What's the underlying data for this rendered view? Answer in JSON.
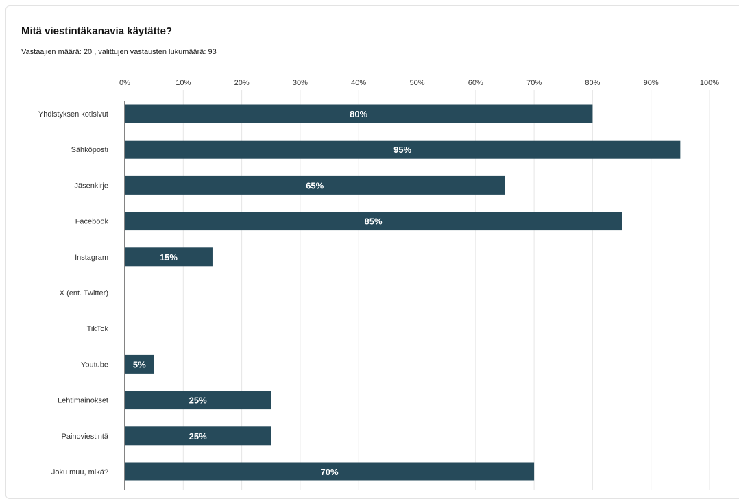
{
  "chart_data": {
    "type": "bar",
    "orientation": "horizontal",
    "title": "Mitä viestintäkanavia käytätte?",
    "subtitle": "Vastaajien määrä: 20 , valittujen vastausten lukumäärä: 93",
    "categories": [
      "Yhdistyksen kotisivut",
      "Sähköposti",
      "Jäsenkirje",
      "Facebook",
      "Instagram",
      "X (ent. Twitter)",
      "TikTok",
      "Youtube",
      "Lehtimainokset",
      "Painoviestintä",
      "Joku muu, mikä?"
    ],
    "values": [
      80,
      95,
      65,
      85,
      15,
      0,
      0,
      5,
      25,
      25,
      70
    ],
    "data_labels": [
      "80%",
      "95%",
      "65%",
      "85%",
      "15%",
      "",
      "",
      "5%",
      "25%",
      "25%",
      "70%"
    ],
    "xlim": [
      0,
      100
    ],
    "x_ticks": [
      0,
      10,
      20,
      30,
      40,
      50,
      60,
      70,
      80,
      90,
      100
    ],
    "x_tick_labels": [
      "0%",
      "10%",
      "20%",
      "30%",
      "40%",
      "50%",
      "60%",
      "70%",
      "80%",
      "90%",
      "100%"
    ],
    "x_axis_position": "top",
    "grid": true,
    "bar_color": "#264a5a",
    "grid_color": "#e6e6e6",
    "axis_color": "#333333"
  }
}
